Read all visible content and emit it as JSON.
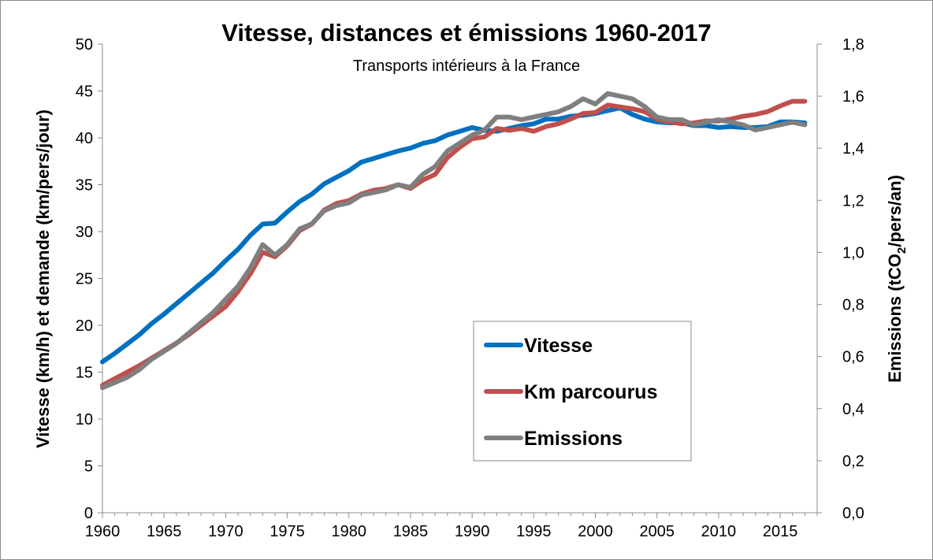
{
  "chart_data": {
    "type": "line",
    "title": "Vitesse, distances et émissions 1960-2017",
    "subtitle": "Transports intérieurs à la France",
    "xlabel": "",
    "ylabel": "Vitesse (km/h) et demande (km/pers/jour)",
    "y2label_prefix": "Emissions (tCO",
    "y2label_sub": "2",
    "y2label_suffix": "/pers/an)",
    "xlim": [
      1960,
      2018
    ],
    "ylim": [
      0,
      50
    ],
    "y2lim": [
      0,
      1.8
    ],
    "x_ticks": [
      "1960",
      "1965",
      "1970",
      "1975",
      "1980",
      "1985",
      "1990",
      "1995",
      "2000",
      "2005",
      "2010",
      "2015"
    ],
    "y_ticks": [
      "0",
      "5",
      "10",
      "15",
      "20",
      "25",
      "30",
      "35",
      "40",
      "45",
      "50"
    ],
    "y2_ticks": [
      "0,0",
      "0,2",
      "0,4",
      "0,6",
      "0,8",
      "1,0",
      "1,2",
      "1,4",
      "1,6",
      "1,8"
    ],
    "x": [
      1960,
      1961,
      1962,
      1963,
      1964,
      1965,
      1966,
      1967,
      1968,
      1969,
      1970,
      1971,
      1972,
      1973,
      1974,
      1975,
      1976,
      1977,
      1978,
      1979,
      1980,
      1981,
      1982,
      1983,
      1984,
      1985,
      1986,
      1987,
      1988,
      1989,
      1990,
      1991,
      1992,
      1993,
      1994,
      1995,
      1996,
      1997,
      1998,
      1999,
      2000,
      2001,
      2002,
      2003,
      2004,
      2005,
      2006,
      2007,
      2008,
      2009,
      2010,
      2011,
      2012,
      2013,
      2014,
      2015,
      2016,
      2017
    ],
    "series": [
      {
        "name": "Vitesse",
        "axis": "left",
        "color": "#0070c0",
        "values": [
          16.1,
          17.0,
          18.0,
          19.0,
          20.2,
          21.2,
          22.3,
          23.4,
          24.5,
          25.6,
          26.9,
          28.1,
          29.6,
          30.8,
          30.9,
          32.1,
          33.2,
          34.0,
          35.1,
          35.8,
          36.5,
          37.4,
          37.8,
          38.2,
          38.6,
          38.9,
          39.4,
          39.7,
          40.3,
          40.7,
          41.1,
          40.8,
          40.7,
          41.0,
          41.3,
          41.5,
          42.0,
          42.0,
          42.3,
          42.4,
          42.6,
          42.9,
          43.2,
          42.5,
          42.0,
          41.7,
          41.6,
          41.6,
          41.3,
          41.3,
          41.1,
          41.2,
          41.1,
          41.1,
          41.2,
          41.7,
          41.7,
          41.6
        ]
      },
      {
        "name": "Km parcourus",
        "axis": "left",
        "color": "#c0504d",
        "values": [
          13.6,
          14.3,
          15.0,
          15.7,
          16.5,
          17.3,
          18.1,
          19.0,
          20.0,
          21.0,
          22.0,
          23.6,
          25.5,
          27.8,
          27.3,
          28.5,
          30.1,
          30.8,
          32.3,
          33.0,
          33.3,
          34.0,
          34.4,
          34.6,
          35.0,
          34.6,
          35.5,
          36.1,
          37.9,
          39.0,
          39.9,
          40.1,
          41.0,
          40.8,
          41.0,
          40.7,
          41.2,
          41.5,
          42.0,
          42.6,
          42.7,
          43.5,
          43.3,
          43.1,
          42.8,
          42.0,
          41.7,
          41.5,
          41.6,
          41.8,
          41.8,
          42.0,
          42.3,
          42.5,
          42.8,
          43.4,
          43.9,
          43.9
        ]
      },
      {
        "name": "Emissions",
        "axis": "right",
        "color": "#7f7f7f",
        "values": [
          0.48,
          0.5,
          0.52,
          0.55,
          0.59,
          0.62,
          0.65,
          0.69,
          0.73,
          0.77,
          0.82,
          0.87,
          0.94,
          1.03,
          0.99,
          1.03,
          1.09,
          1.11,
          1.16,
          1.18,
          1.19,
          1.22,
          1.23,
          1.24,
          1.26,
          1.25,
          1.3,
          1.33,
          1.39,
          1.42,
          1.45,
          1.47,
          1.52,
          1.52,
          1.51,
          1.52,
          1.53,
          1.54,
          1.56,
          1.59,
          1.57,
          1.61,
          1.6,
          1.59,
          1.56,
          1.52,
          1.51,
          1.51,
          1.49,
          1.5,
          1.51,
          1.5,
          1.49,
          1.47,
          1.48,
          1.49,
          1.5,
          1.49
        ]
      }
    ],
    "legend": [
      "Vitesse",
      "Km parcourus",
      "Emissions"
    ],
    "legend_position": "center-right"
  }
}
